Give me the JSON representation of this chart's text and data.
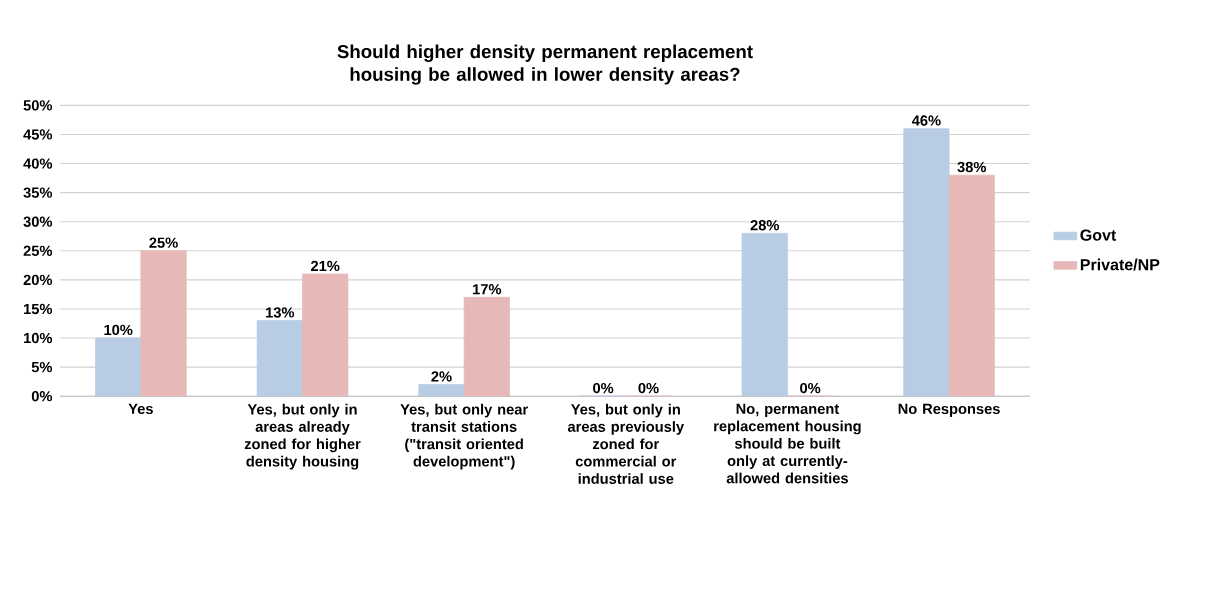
{
  "chart_data": {
    "type": "bar",
    "title": "Should higher density permanent replacement housing be allowed in lower density areas?",
    "categories": [
      "Yes",
      "Yes, but only in areas already zoned for higher density housing",
      "Yes, but only near transit stations (\"transit oriented development\")",
      "Yes, but only in areas previously zoned for commercial or industrial use",
      "No, permanent replacement housing should be built only at currently-allowed densities",
      "No Responses"
    ],
    "series": [
      {
        "name": "Govt",
        "color": "#b8cce4",
        "values": [
          10,
          13,
          2,
          0,
          28,
          46
        ],
        "value_labels": [
          "10%",
          "13%",
          "2%",
          "0%",
          "28%",
          "46%"
        ]
      },
      {
        "name": "Private/NP",
        "color": "#e6b9b8",
        "values": [
          25,
          21,
          17,
          0,
          0,
          38
        ],
        "value_labels": [
          "25%",
          "21%",
          "17%",
          "0%",
          "0%",
          "38%"
        ]
      }
    ],
    "ylim": [
      0,
      50
    ],
    "yticks": [
      {
        "value": 0,
        "label": "0%"
      },
      {
        "value": 5,
        "label": "5%"
      },
      {
        "value": 10,
        "label": "10%"
      },
      {
        "value": 15,
        "label": "15%"
      },
      {
        "value": 20,
        "label": "20%"
      },
      {
        "value": 25,
        "label": "25%"
      },
      {
        "value": 30,
        "label": "30%"
      },
      {
        "value": 35,
        "label": "35%"
      },
      {
        "value": 40,
        "label": "40%"
      },
      {
        "value": 45,
        "label": "45%"
      },
      {
        "value": 50,
        "label": "50%"
      }
    ],
    "grid": "y",
    "legend": "right"
  }
}
